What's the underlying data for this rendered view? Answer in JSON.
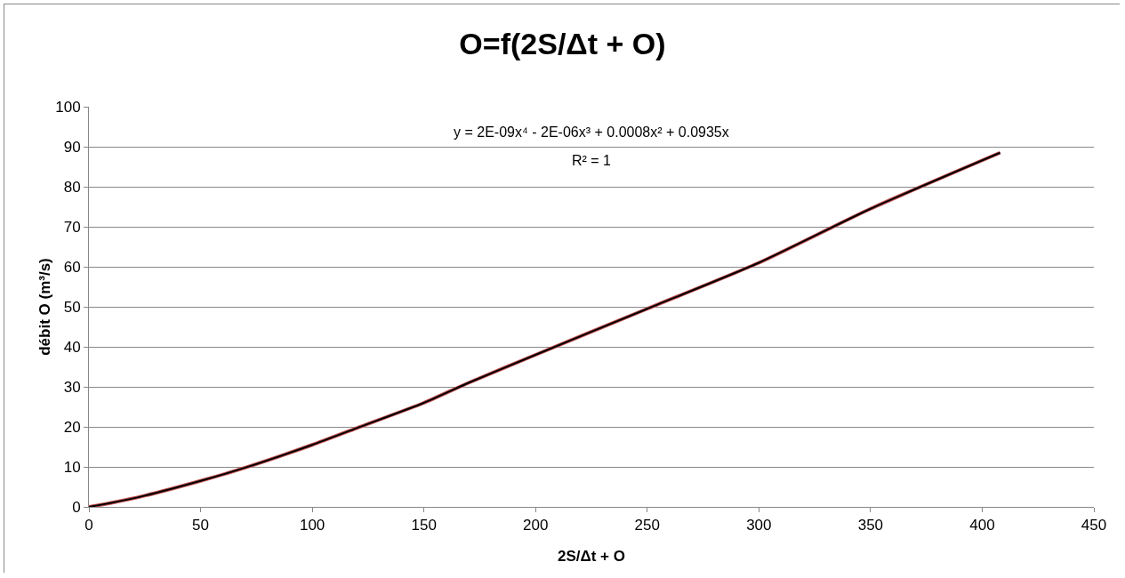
{
  "chart_data": {
    "type": "line",
    "title": "O=f(2S/Δt + O)",
    "xlabel": "2S/Δt + O",
    "ylabel": "débit O (m³/s)",
    "annotations": [
      "y = 2E-09x⁴ - 2E-06x³ + 0.0008x² + 0.0935x",
      "R² = 1"
    ],
    "series": [
      {
        "color": "#c0504d",
        "x": [
          0,
          10,
          25,
          50,
          70,
          100,
          120,
          150,
          170,
          200,
          250,
          300,
          350,
          408
        ],
        "values": [
          0,
          1,
          2.8,
          6.5,
          9.8,
          15.5,
          19.7,
          26,
          31,
          38,
          49.5,
          61,
          74.5,
          88.5
        ]
      },
      {
        "type": "line",
        "color": "#000000",
        "x": [
          0,
          10,
          25,
          50,
          70,
          100,
          120,
          150,
          170,
          200,
          250,
          300,
          350,
          408
        ],
        "values": [
          0,
          1,
          2.8,
          6.5,
          9.8,
          15.5,
          19.7,
          26,
          31,
          38,
          49.5,
          61,
          74.5,
          88.5
        ]
      }
    ],
    "xlim": [
      0,
      450
    ],
    "xticks": [
      0,
      50,
      100,
      150,
      200,
      250,
      300,
      350,
      400,
      450
    ],
    "ylim": [
      0,
      100
    ],
    "yticks": [
      0,
      10,
      20,
      30,
      40,
      50,
      60,
      70,
      80,
      90,
      100
    ],
    "grid": "y",
    "marker": "none",
    "line_style": "solid"
  }
}
